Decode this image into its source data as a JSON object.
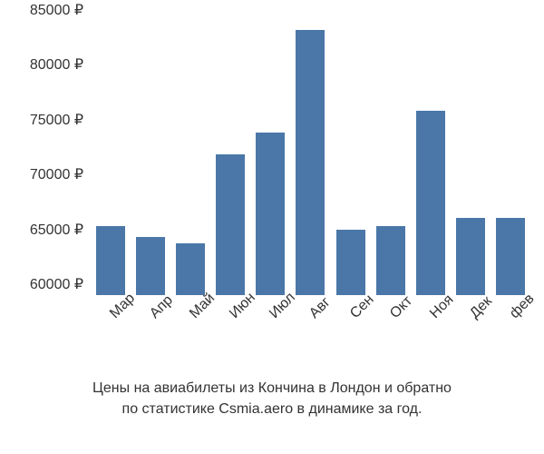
{
  "chart": {
    "type": "bar",
    "categories": [
      "Мар",
      "Апр",
      "Май",
      "Июн",
      "Июл",
      "Авг",
      "Сен",
      "Окт",
      "Ноя",
      "Дек",
      "фев"
    ],
    "values": [
      65300,
      64300,
      63700,
      71800,
      73800,
      83200,
      65000,
      65300,
      75800,
      66000,
      66000
    ],
    "bar_color": "#4a77a8",
    "ylim": [
      59000,
      85500
    ],
    "yticks": [
      60000,
      65000,
      70000,
      75000,
      80000,
      85000
    ],
    "ytick_labels": [
      "60000 ₽",
      "65000 ₽",
      "70000 ₽",
      "75000 ₽",
      "80000 ₽",
      "85000 ₽"
    ],
    "background_color": "#ffffff",
    "label_fontsize": 16,
    "caption_line1": "Цены на авиабилеты из Кончина в Лондон и обратно",
    "caption_line2": "по статистике Csmia.aero в динамике за год.",
    "caption_color": "#333333",
    "x_rotation": -45
  }
}
